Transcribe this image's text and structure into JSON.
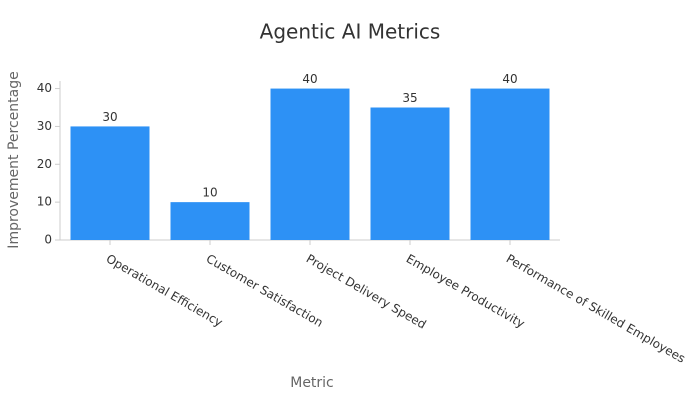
{
  "chart_data": {
    "type": "bar",
    "title": "Agentic AI Metrics",
    "x_label": "Metric",
    "y_label": "Improvement Percentage",
    "categories": [
      "Operational Efficiency",
      "Customer Satisfaction",
      "Project Delivery Speed",
      "Employee Productivity",
      "Performance of Skilled Employees"
    ],
    "values": [
      30,
      10,
      40,
      35,
      40
    ],
    "color": "#2d91f5",
    "ylim": [
      0,
      42
    ],
    "yticks": [
      0,
      10,
      20,
      30,
      40
    ],
    "grid": false
  }
}
